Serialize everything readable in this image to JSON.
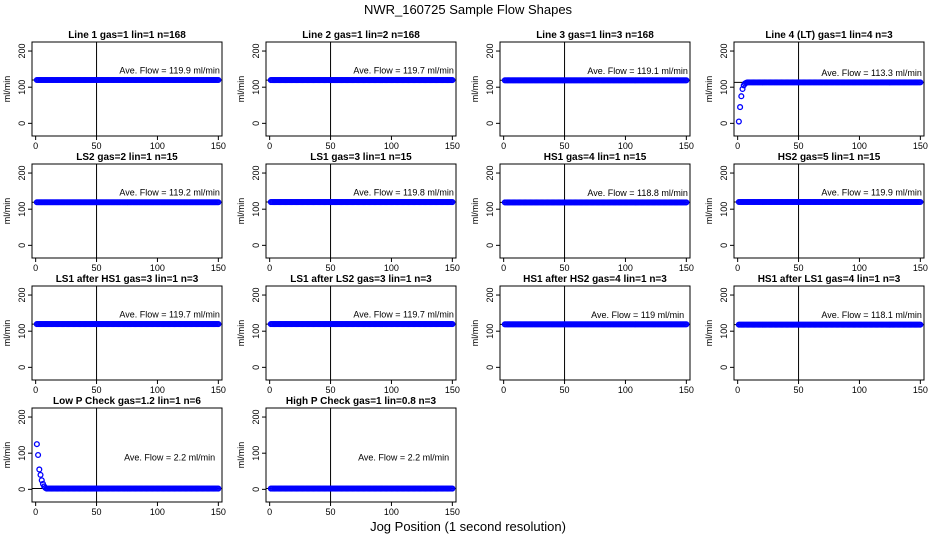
{
  "title": "NWR_160725  Sample Flow Shapes",
  "xlabel": "Jog Position (1 second resolution)",
  "chart_data": {
    "type": "scatter",
    "ylabel": "ml/min",
    "xticks": [
      0,
      50,
      100,
      150
    ],
    "yticks": [
      0,
      100,
      200
    ],
    "xlim": [
      -3,
      153
    ],
    "ylim": [
      -35,
      225
    ],
    "vline_x": 50,
    "marker_color": "#0000ff",
    "panels": [
      {
        "title": "Line 1 gas=1 lin=1 n=168",
        "annotation": "Ave. Flow = 119.9  ml/min",
        "mean": 119.9,
        "start": []
      },
      {
        "title": "Line 2 gas=1 lin=2 n=168",
        "annotation": "Ave. Flow = 119.7  ml/min",
        "mean": 119.7,
        "start": []
      },
      {
        "title": "Line 3 gas=1 lin=3 n=168",
        "annotation": "Ave. Flow = 119.1  ml/min",
        "mean": 119.1,
        "start": []
      },
      {
        "title": "Line 4 (LT) gas=1 lin=4 n=3",
        "annotation": "Ave. Flow = 113.3  ml/min",
        "mean": 113.3,
        "start": [
          [
            1,
            5
          ],
          [
            2,
            45
          ],
          [
            3,
            75
          ],
          [
            4,
            95
          ],
          [
            5,
            105
          ],
          [
            6,
            110
          ],
          [
            7,
            112
          ]
        ]
      },
      {
        "title": "LS2 gas=2 lin=1 n=15",
        "annotation": "Ave. Flow = 119.2  ml/min",
        "mean": 119.2,
        "start": []
      },
      {
        "title": "LS1 gas=3 lin=1 n=15",
        "annotation": "Ave. Flow = 119.8  ml/min",
        "mean": 119.8,
        "start": []
      },
      {
        "title": "HS1 gas=4 lin=1 n=15",
        "annotation": "Ave. Flow = 118.8  ml/min",
        "mean": 118.8,
        "start": []
      },
      {
        "title": "HS2 gas=5 lin=1 n=15",
        "annotation": "Ave. Flow = 119.9  ml/min",
        "mean": 119.9,
        "start": []
      },
      {
        "title": "LS1 after HS1 gas=3 lin=1 n=3",
        "annotation": "Ave. Flow = 119.7  ml/min",
        "mean": 119.7,
        "start": []
      },
      {
        "title": "LS1 after LS2 gas=3 lin=1 n=3",
        "annotation": "Ave. Flow = 119.7  ml/min",
        "mean": 119.7,
        "start": []
      },
      {
        "title": "HS1 after HS2 gas=4 lin=1 n=3",
        "annotation": "Ave. Flow = 119  ml/min",
        "mean": 119,
        "start": []
      },
      {
        "title": "HS1 after LS1 gas=4 lin=1 n=3",
        "annotation": "Ave. Flow = 118.1  ml/min",
        "mean": 118.1,
        "start": []
      },
      {
        "title": "Low P Check gas=1.2 lin=1 n=6",
        "annotation": "Ave. Flow = 2.2  ml/min",
        "mean": 2.2,
        "start": [
          [
            1,
            125
          ],
          [
            2,
            95
          ],
          [
            3,
            55
          ],
          [
            4,
            40
          ],
          [
            5,
            25
          ],
          [
            6,
            15
          ],
          [
            7,
            8
          ],
          [
            8,
            4
          ],
          [
            9,
            2
          ]
        ]
      },
      {
        "title": "High P Check gas=1 lin=0.8 n=3",
        "annotation": "Ave. Flow = 2.2  ml/min",
        "mean": 2.2,
        "start": []
      }
    ]
  }
}
